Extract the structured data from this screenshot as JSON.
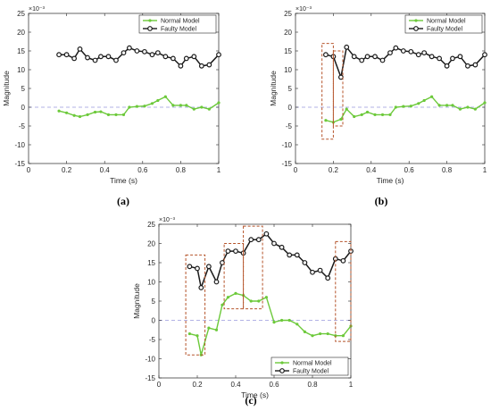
{
  "chart_data": [
    {
      "type": "line",
      "caption": "(a)",
      "xlabel": "Time (s)",
      "ylabel": "Magnitude",
      "y_exponent": "×10⁻³",
      "xlim": [
        0,
        1
      ],
      "ylim": [
        -15,
        25
      ],
      "xticks": [
        0,
        0.2,
        0.4,
        0.6,
        0.8,
        1
      ],
      "yticks": [
        -15,
        -10,
        -5,
        0,
        5,
        10,
        15,
        20,
        25
      ],
      "legend_position": "top-right",
      "grid": false,
      "series": [
        {
          "name": "Normal Model",
          "color": "#6cc93a",
          "marker": "small-dot",
          "x": [
            0.16,
            0.2,
            0.24,
            0.27,
            0.31,
            0.35,
            0.38,
            0.42,
            0.46,
            0.5,
            0.53,
            0.57,
            0.61,
            0.65,
            0.68,
            0.72,
            0.76,
            0.8,
            0.83,
            0.87,
            0.91,
            0.95,
            1.0
          ],
          "y": [
            -1,
            -1.5,
            -2.2,
            -2.5,
            -2,
            -1.3,
            -1.2,
            -2,
            -2,
            -2,
            0,
            0.2,
            0.3,
            1,
            1.8,
            2.8,
            0.5,
            0.5,
            0.5,
            -0.5,
            0,
            -0.5,
            1.2
          ]
        },
        {
          "name": "Faulty Model",
          "color": "#1a1a1a",
          "marker": "circle",
          "x": [
            0.16,
            0.2,
            0.24,
            0.27,
            0.31,
            0.35,
            0.38,
            0.42,
            0.46,
            0.5,
            0.53,
            0.57,
            0.61,
            0.65,
            0.68,
            0.72,
            0.76,
            0.8,
            0.83,
            0.87,
            0.91,
            0.95,
            1.0
          ],
          "y": [
            14,
            14,
            13,
            15.5,
            13.2,
            12.5,
            13.5,
            13.5,
            12.5,
            14.5,
            15.8,
            15,
            14.8,
            14,
            14.5,
            13.5,
            13,
            11,
            13,
            13.5,
            11,
            11.3,
            14
          ]
        }
      ],
      "reference_line": {
        "y": 0,
        "color": "#9999dd"
      },
      "highlight_boxes": []
    },
    {
      "type": "line",
      "caption": "(b)",
      "xlabel": "Time (s)",
      "ylabel": "Magnitude",
      "y_exponent": "×10⁻³",
      "xlim": [
        0,
        1
      ],
      "ylim": [
        -15,
        25
      ],
      "xticks": [
        0,
        0.2,
        0.4,
        0.6,
        0.8,
        1
      ],
      "yticks": [
        -15,
        -10,
        -5,
        0,
        5,
        10,
        15,
        20,
        25
      ],
      "legend_position": "top-right",
      "grid": false,
      "series": [
        {
          "name": "Normal Model",
          "color": "#6cc93a",
          "marker": "small-dot",
          "x": [
            0.16,
            0.2,
            0.24,
            0.27,
            0.31,
            0.35,
            0.38,
            0.42,
            0.46,
            0.5,
            0.53,
            0.57,
            0.61,
            0.65,
            0.68,
            0.72,
            0.76,
            0.8,
            0.83,
            0.87,
            0.91,
            0.95,
            1.0
          ],
          "y": [
            -3.5,
            -4,
            -3.2,
            -0.5,
            -2.5,
            -2,
            -1.3,
            -2,
            -2,
            -2,
            0,
            0.2,
            0.3,
            1,
            1.8,
            2.8,
            0.5,
            0.5,
            0.5,
            -0.5,
            0,
            -0.5,
            1.2
          ]
        },
        {
          "name": "Faulty Model",
          "color": "#1a1a1a",
          "marker": "circle",
          "x": [
            0.16,
            0.2,
            0.24,
            0.27,
            0.31,
            0.35,
            0.38,
            0.42,
            0.46,
            0.5,
            0.53,
            0.57,
            0.61,
            0.65,
            0.68,
            0.72,
            0.76,
            0.8,
            0.83,
            0.87,
            0.91,
            0.95,
            1.0
          ],
          "y": [
            14,
            13.5,
            8,
            16,
            13.5,
            12.5,
            13.5,
            13.5,
            12.5,
            14.5,
            15.8,
            15,
            14.8,
            14,
            14.5,
            13.5,
            13,
            11,
            13,
            13.5,
            11,
            11.3,
            14
          ]
        }
      ],
      "reference_line": {
        "y": 0,
        "color": "#9999dd"
      },
      "highlight_boxes": [
        {
          "x0": 0.14,
          "x1": 0.2,
          "y0": -8.5,
          "y1": 17
        },
        {
          "x0": 0.2,
          "x1": 0.25,
          "y0": -5,
          "y1": 15
        }
      ]
    },
    {
      "type": "line",
      "caption": "(c)",
      "xlabel": "Time (s)",
      "ylabel": "Magnitude",
      "y_exponent": "×10⁻³",
      "xlim": [
        0,
        1
      ],
      "ylim": [
        -15,
        25
      ],
      "xticks": [
        0,
        0.2,
        0.4,
        0.6,
        0.8,
        1
      ],
      "yticks": [
        -15,
        -10,
        -5,
        0,
        5,
        10,
        15,
        20,
        25
      ],
      "legend_position": "bottom-right",
      "grid": false,
      "series": [
        {
          "name": "Normal Model",
          "color": "#6cc93a",
          "marker": "small-dot",
          "x": [
            0.16,
            0.2,
            0.22,
            0.26,
            0.3,
            0.33,
            0.36,
            0.4,
            0.44,
            0.48,
            0.52,
            0.56,
            0.6,
            0.64,
            0.68,
            0.72,
            0.76,
            0.8,
            0.84,
            0.88,
            0.92,
            0.96,
            1.0
          ],
          "y": [
            -3.5,
            -4,
            -9,
            -2,
            -2.5,
            4,
            6,
            7,
            6.5,
            5,
            5,
            6,
            -0.5,
            0,
            0,
            -1,
            -3,
            -4,
            -3.5,
            -3.5,
            -4,
            -4,
            -1.5
          ]
        },
        {
          "name": "Faulty Model",
          "color": "#1a1a1a",
          "marker": "circle",
          "x": [
            0.16,
            0.2,
            0.22,
            0.26,
            0.3,
            0.33,
            0.36,
            0.4,
            0.44,
            0.48,
            0.52,
            0.56,
            0.6,
            0.64,
            0.68,
            0.72,
            0.76,
            0.8,
            0.84,
            0.88,
            0.92,
            0.96,
            1.0
          ],
          "y": [
            14,
            13.5,
            8.5,
            14,
            10,
            15,
            18,
            18,
            17.5,
            21,
            21,
            22.5,
            20,
            19,
            17,
            17,
            15,
            12.5,
            13,
            11,
            16,
            15.5,
            18
          ]
        }
      ],
      "reference_line": {
        "y": 0,
        "color": "#9999dd"
      },
      "highlight_boxes": [
        {
          "x0": 0.14,
          "x1": 0.24,
          "y0": -9,
          "y1": 17
        },
        {
          "x0": 0.34,
          "x1": 0.44,
          "y0": 3,
          "y1": 20
        },
        {
          "x0": 0.44,
          "x1": 0.54,
          "y0": 3,
          "y1": 24.5
        },
        {
          "x0": 0.92,
          "x1": 1.0,
          "y0": -5.5,
          "y1": 20.5
        }
      ]
    }
  ]
}
